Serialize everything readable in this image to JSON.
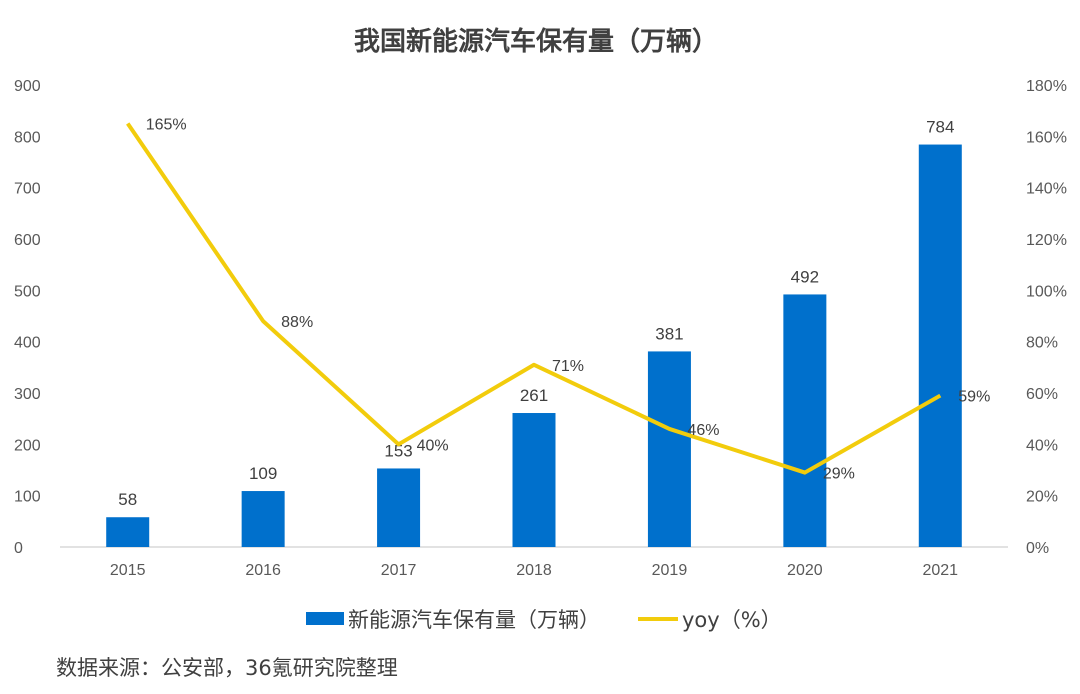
{
  "chart_data": {
    "type": "bar",
    "title": "我国新能源汽车保有量（万辆）",
    "categories": [
      "2015",
      "2016",
      "2017",
      "2018",
      "2019",
      "2020",
      "2021"
    ],
    "series": [
      {
        "name": "新能源汽车保有量（万辆）",
        "type": "bar",
        "axis": "left",
        "color": "#0070CC",
        "values": [
          58,
          109,
          153,
          261,
          381,
          492,
          784
        ],
        "labels": [
          "58",
          "109",
          "153",
          "261",
          "381",
          "492",
          "784"
        ]
      },
      {
        "name": "yoy（%）",
        "type": "line",
        "axis": "right",
        "color": "#F2CC0C",
        "values": [
          165,
          88,
          40,
          71,
          46,
          29,
          59
        ],
        "labels": [
          "165%",
          "88%",
          "40%",
          "71%",
          "46%",
          "29%",
          "59%"
        ]
      }
    ],
    "y_left": {
      "range": [
        0,
        900
      ],
      "ticks": [
        "0",
        "100",
        "200",
        "300",
        "400",
        "500",
        "600",
        "700",
        "800",
        "900"
      ]
    },
    "y_right": {
      "range": [
        0,
        180
      ],
      "ticks": [
        "0%",
        "20%",
        "40%",
        "60%",
        "80%",
        "100%",
        "120%",
        "140%",
        "160%",
        "180%"
      ]
    },
    "grid": false,
    "legend_position": "bottom"
  },
  "source_note": "数据来源：公安部，36氪研究院整理"
}
